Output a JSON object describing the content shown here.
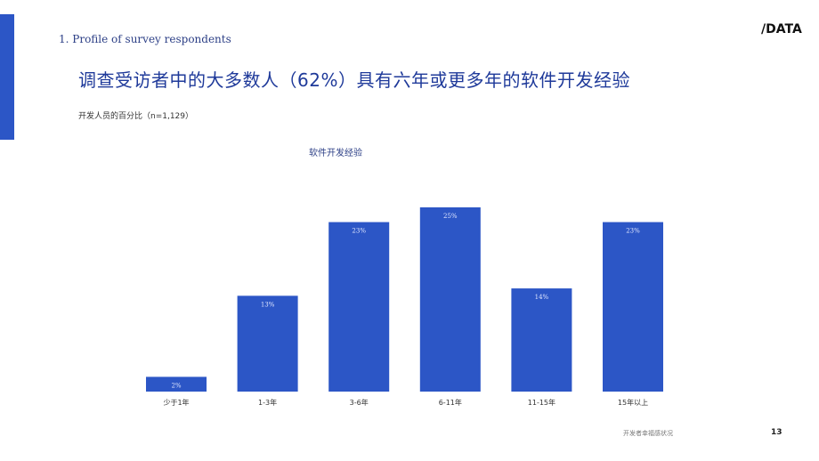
{
  "header": {
    "section_label": "1. Profile of survey respondents",
    "headline": "调查受访者中的大多数人（62%）具有六年或更多年的软件开发经验",
    "subtitle": "开发人员的百分比（n=1,129）",
    "logo_text": "/DATA"
  },
  "chart_data": {
    "type": "bar",
    "title": "软件开发经验",
    "categories": [
      "少于1年",
      "1-3年",
      "3-6年",
      "6-11年",
      "11-15年",
      "15年以上"
    ],
    "values": [
      2,
      13,
      23,
      25,
      14,
      23
    ],
    "value_labels": [
      "2%",
      "13%",
      "23%",
      "25%",
      "14%",
      "23%"
    ],
    "ylim": [
      0,
      25
    ],
    "grid": false,
    "bar_color": "#2c56c6"
  },
  "footer": {
    "note": "开发者幸福感状况",
    "page_number": "13"
  },
  "colors": {
    "accent": "#2c56c6",
    "headline": "#1f3a9a"
  }
}
